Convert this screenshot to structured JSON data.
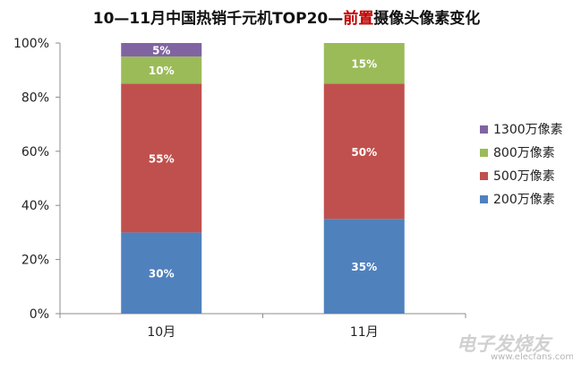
{
  "chart_data": {
    "type": "bar",
    "stacked": true,
    "title_parts": [
      "10—11月中国热销千元机TOP20—",
      "前置",
      "摄像头像素变化"
    ],
    "categories": [
      "10月",
      "11月"
    ],
    "series": [
      {
        "name": "200万像素",
        "color": "#4f81bd",
        "values": [
          30,
          35
        ],
        "labels": [
          "30%",
          "35%"
        ]
      },
      {
        "name": "500万像素",
        "color": "#c0504d",
        "values": [
          55,
          50
        ],
        "labels": [
          "55%",
          "50%"
        ]
      },
      {
        "name": "800万像素",
        "color": "#9bbb59",
        "values": [
          10,
          15
        ],
        "labels": [
          "10%",
          "15%"
        ]
      },
      {
        "name": "1300万像素",
        "color": "#8064a2",
        "values": [
          5,
          0
        ],
        "labels": [
          "5%",
          ""
        ]
      }
    ],
    "y_ticks": [
      "0%",
      "20%",
      "40%",
      "60%",
      "80%",
      "100%"
    ],
    "ylim": [
      0,
      100
    ],
    "grid": false,
    "legend_position": "right"
  },
  "watermark": {
    "logo_text": "电子发烧友",
    "url": "www.elecfans.com"
  }
}
